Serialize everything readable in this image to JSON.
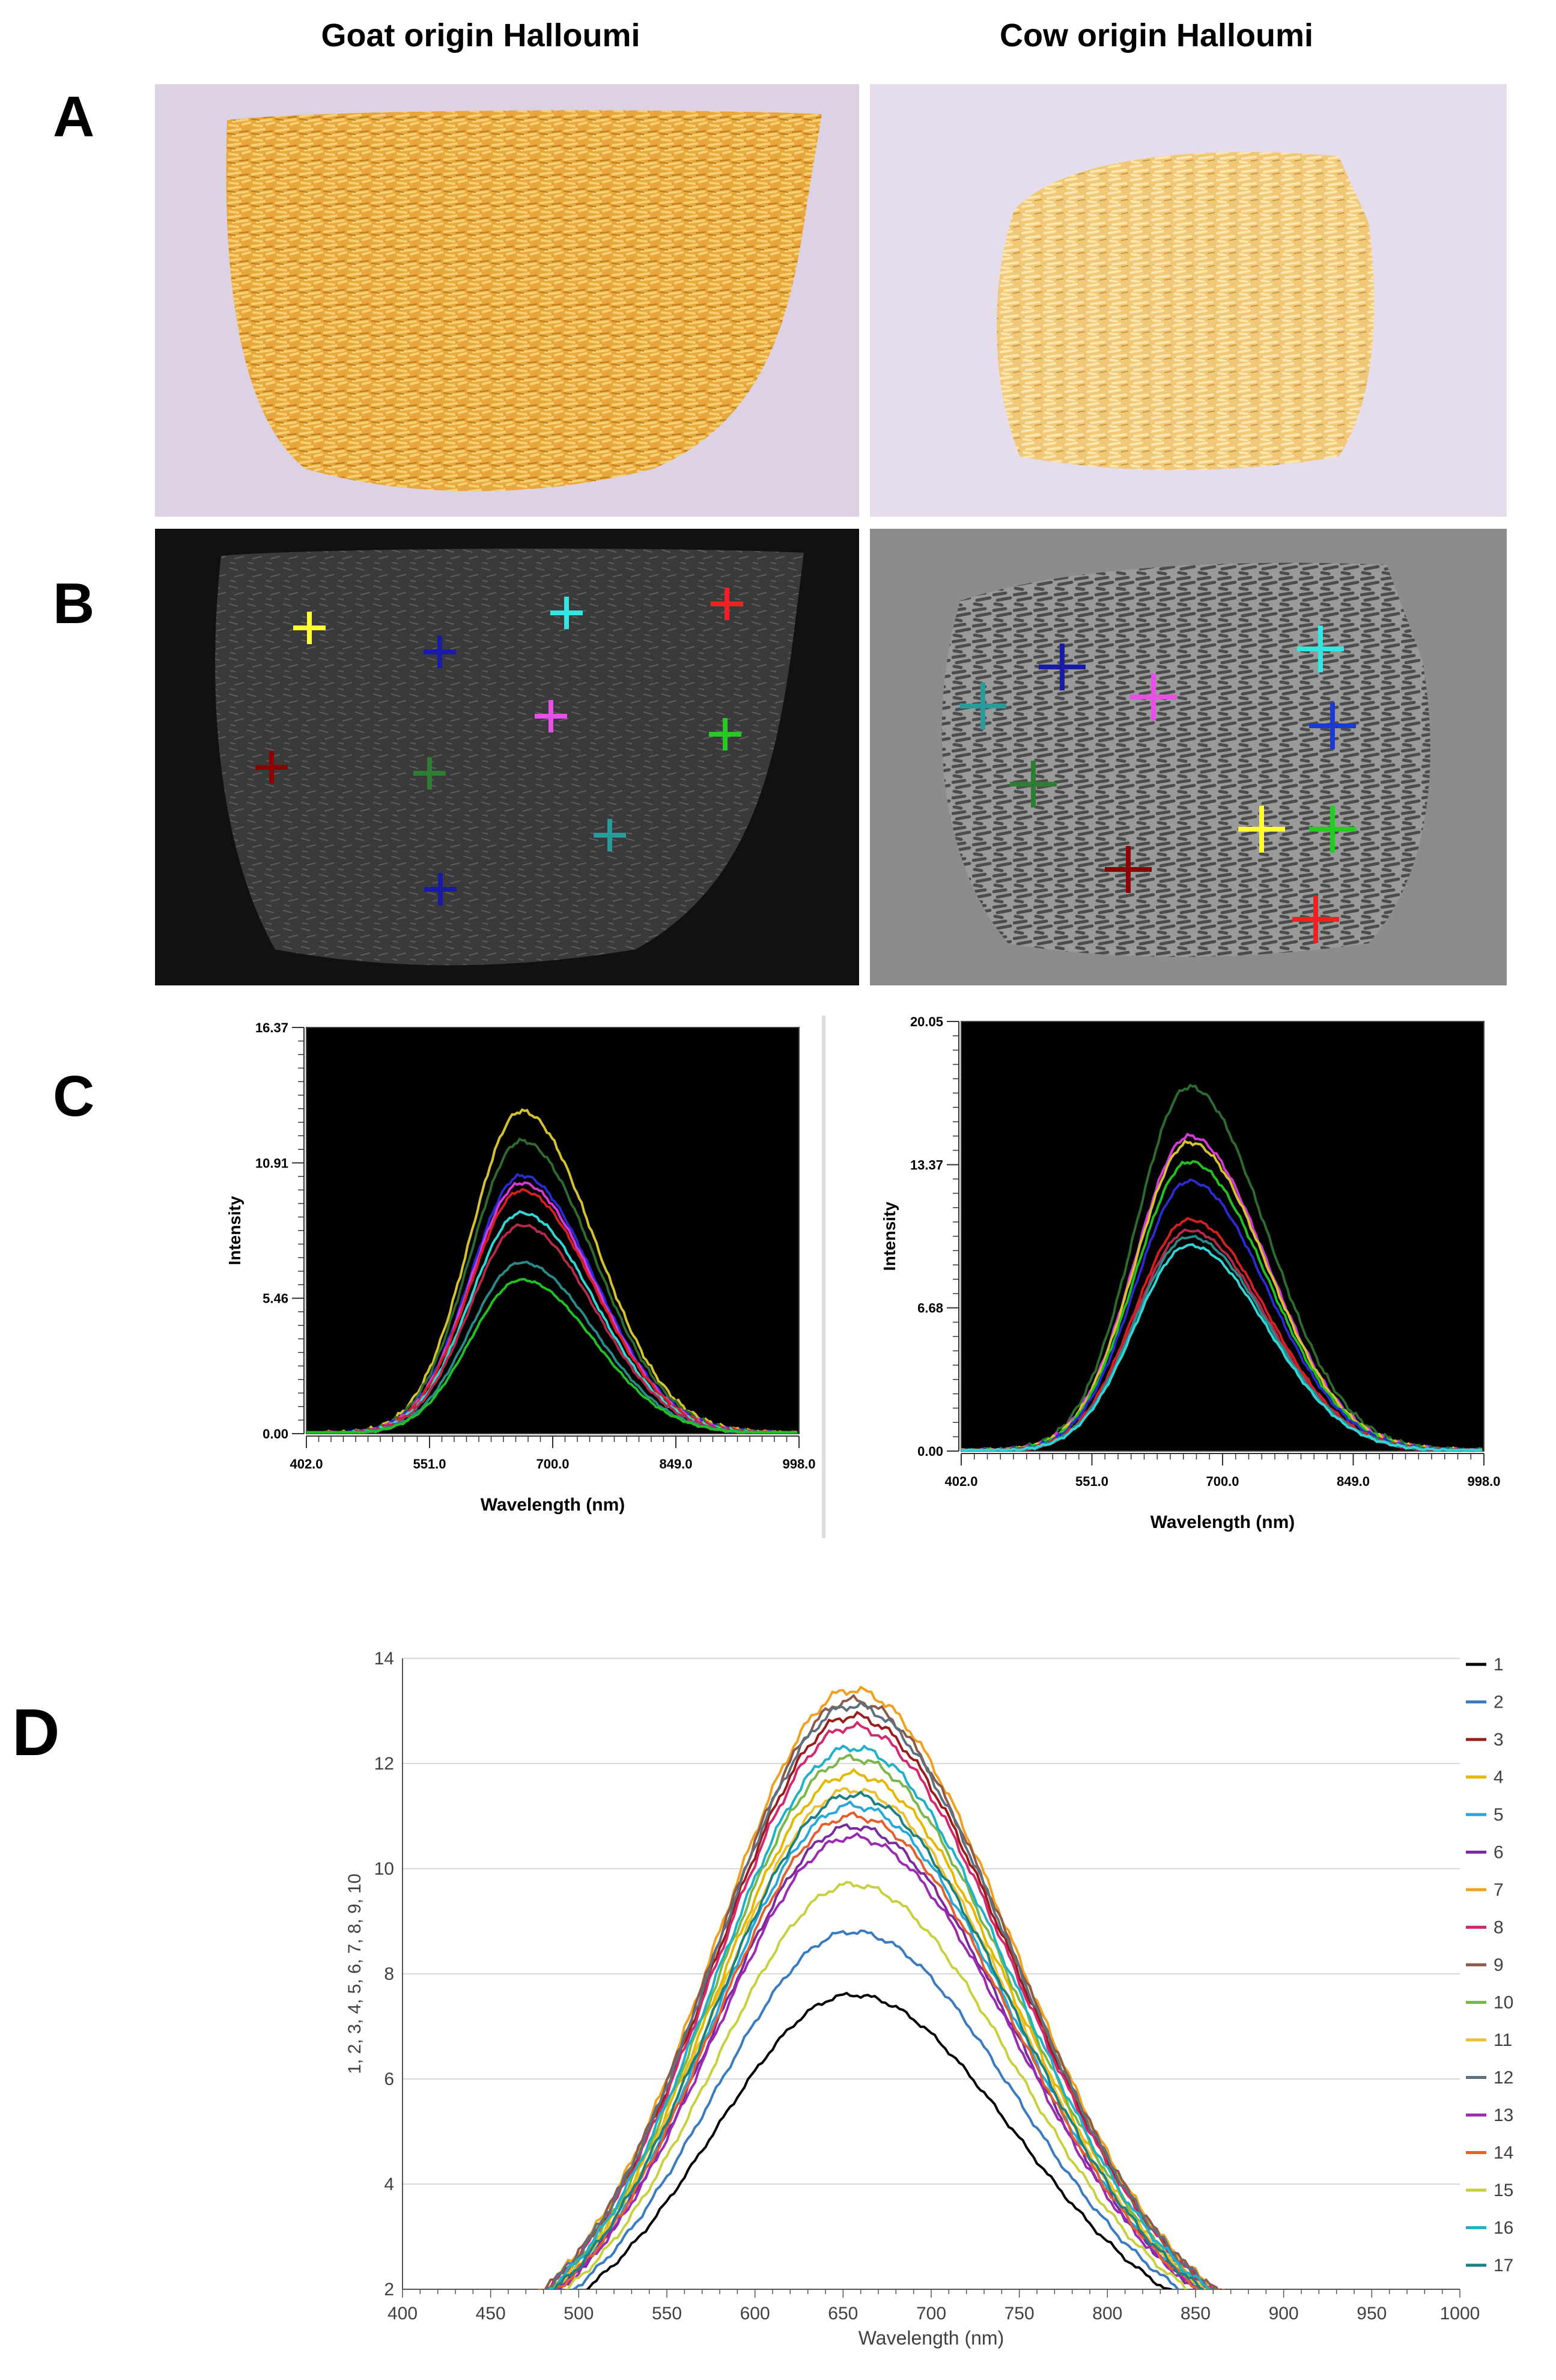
{
  "figure": {
    "headers": {
      "left": "Goat origin Halloumi",
      "right": "Cow origin Halloumi"
    },
    "panel_labels": {
      "a": "A",
      "b": "B",
      "c": "C",
      "d": "D"
    }
  },
  "panel_b": {
    "goat_markers": [
      "#ffff33",
      "#1a1aa8",
      "#33e6e6",
      "#ee2222",
      "#8b0000",
      "#2e7d32",
      "#e84ee8",
      "#22cc22",
      "#2a9a9a",
      "#1a1aa8"
    ],
    "cow_markers": [
      "#2a9a9a",
      "#1a1aa8",
      "#e84ee8",
      "#33e6e6",
      "#1a3ad0",
      "#2e7d32",
      "#ffff33",
      "#22cc22",
      "#8b0000",
      "#ee2222"
    ]
  },
  "chart_data": [
    {
      "id": "C-left",
      "type": "line",
      "title": "",
      "xlabel": "Wavelength (nm)",
      "ylabel": "Intensity",
      "xlim": [
        402.0,
        998.0
      ],
      "ylim": [
        0.0,
        16.37
      ],
      "xticks": [
        "402.0",
        "551.0",
        "700.0",
        "849.0",
        "998.0"
      ],
      "yticks": [
        "0.00",
        "5.46",
        "10.91",
        "16.37"
      ],
      "background": "#000000",
      "series": [
        {
          "name": "yellow",
          "color": "#d4c230",
          "peak": 13.0
        },
        {
          "name": "darkgreen",
          "color": "#2e6b2e",
          "peak": 11.8
        },
        {
          "name": "blue",
          "color": "#2b2bd0",
          "peak": 10.4
        },
        {
          "name": "magenta",
          "color": "#d43ad4",
          "peak": 10.1
        },
        {
          "name": "red",
          "color": "#d42020",
          "peak": 9.8
        },
        {
          "name": "cyan",
          "color": "#33d6d6",
          "peak": 8.9
        },
        {
          "name": "darkred",
          "color": "#b52a4a",
          "peak": 8.4
        },
        {
          "name": "teal",
          "color": "#2a8a8a",
          "peak": 6.9
        },
        {
          "name": "green",
          "color": "#22c022",
          "peak": 6.2
        }
      ]
    },
    {
      "id": "C-right",
      "type": "line",
      "title": "",
      "xlabel": "Wavelength (nm)",
      "ylabel": "Intensity",
      "xlim": [
        402.0,
        998.0
      ],
      "ylim": [
        0.0,
        20.05
      ],
      "xticks": [
        "402.0",
        "551.0",
        "700.0",
        "849.0",
        "998.0"
      ],
      "yticks": [
        "0.00",
        "6.68",
        "13.37",
        "20.05"
      ],
      "background": "#000000",
      "series": [
        {
          "name": "darkgreen",
          "color": "#2e6b2e",
          "peak": 17.0
        },
        {
          "name": "magenta",
          "color": "#d43ad4",
          "peak": 14.7
        },
        {
          "name": "yellow",
          "color": "#d4c230",
          "peak": 14.4
        },
        {
          "name": "green",
          "color": "#22c022",
          "peak": 13.5
        },
        {
          "name": "blue",
          "color": "#2b2bd0",
          "peak": 12.6
        },
        {
          "name": "red",
          "color": "#d42020",
          "peak": 10.8
        },
        {
          "name": "darkred",
          "color": "#b52a4a",
          "peak": 10.3
        },
        {
          "name": "teal",
          "color": "#2a8a8a",
          "peak": 10.0
        },
        {
          "name": "cyan",
          "color": "#33d6d6",
          "peak": 9.6
        }
      ]
    },
    {
      "id": "D",
      "type": "line",
      "title": "",
      "xlabel": "Wavelength (nm)",
      "ylabel": "1, 2, 3, 4, 5, 6, 7, 8, 9, 10",
      "xlim": [
        400,
        1000
      ],
      "ylim": [
        2,
        14
      ],
      "xticks": [
        "400",
        "450",
        "500",
        "550",
        "600",
        "650",
        "700",
        "750",
        "800",
        "850",
        "900",
        "950",
        "1000"
      ],
      "yticks": [
        "2",
        "4",
        "6",
        "8",
        "10",
        "12",
        "14"
      ],
      "grid": true,
      "legend": "right",
      "series": [
        {
          "name": "1",
          "color": "#000000",
          "peak": 7.6
        },
        {
          "name": "2",
          "color": "#3a7bbf",
          "peak": 8.8
        },
        {
          "name": "3",
          "color": "#9b1b1b",
          "peak": 12.9
        },
        {
          "name": "4",
          "color": "#e5b800",
          "peak": 11.8
        },
        {
          "name": "5",
          "color": "#29a8d8",
          "peak": 11.2
        },
        {
          "name": "6",
          "color": "#7a2a9a",
          "peak": 10.8
        },
        {
          "name": "7",
          "color": "#f0a020",
          "peak": 13.4
        },
        {
          "name": "8",
          "color": "#d2286e",
          "peak": 12.7
        },
        {
          "name": "9",
          "color": "#8a5a4a",
          "peak": 13.2
        },
        {
          "name": "10",
          "color": "#7ab648",
          "peak": 12.1
        },
        {
          "name": "11",
          "color": "#e8c030",
          "peak": 11.5
        },
        {
          "name": "12",
          "color": "#5e6f7e",
          "peak": 13.1
        },
        {
          "name": "13",
          "color": "#9a2ab0",
          "peak": 10.6
        },
        {
          "name": "14",
          "color": "#e06030",
          "peak": 11.0
        },
        {
          "name": "15",
          "color": "#c8d040",
          "peak": 9.7
        },
        {
          "name": "16",
          "color": "#20b0c8",
          "peak": 12.3
        },
        {
          "name": "17",
          "color": "#1a8080",
          "peak": 11.4
        }
      ]
    }
  ]
}
